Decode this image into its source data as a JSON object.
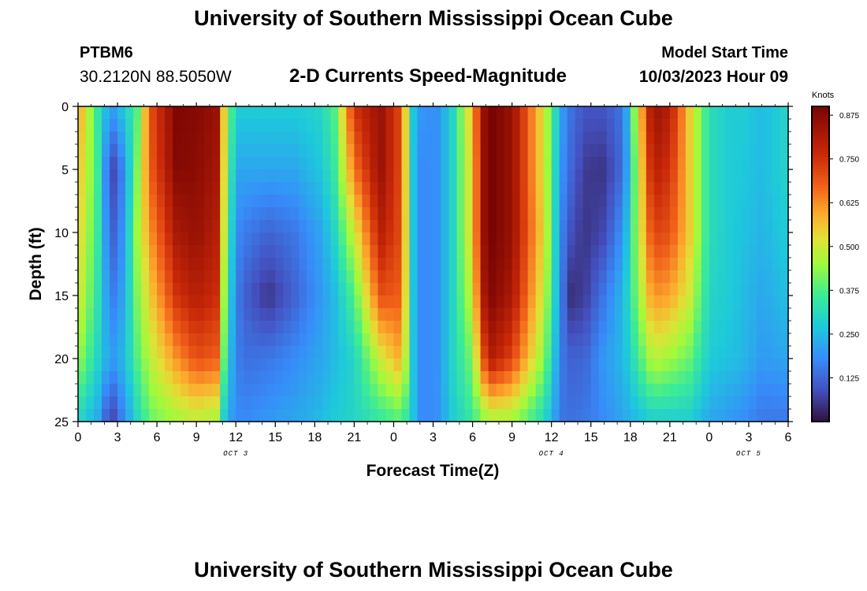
{
  "header": {
    "title": "University of Southern Mississippi Ocean Cube",
    "station_id": "PTBM6",
    "coordinates": "30.2120N  88.5050W",
    "plot_title": "2-D Currents Speed-Magnitude",
    "model_start_label": "Model Start Time",
    "model_start_value": "10/03/2023 Hour 09"
  },
  "footer": {
    "title": "University of Southern Mississippi Ocean Cube"
  },
  "chart_data": {
    "type": "heatmap",
    "title": "2-D Currents Speed-Magnitude",
    "xlabel": "Forecast Time(Z)",
    "ylabel": "Depth (ft)",
    "xlim": [
      0,
      54
    ],
    "ylim": [
      0,
      25
    ],
    "x_ticks": [
      0,
      3,
      6,
      9,
      12,
      15,
      18,
      21,
      24,
      27,
      30,
      33,
      36,
      39,
      42,
      45,
      48,
      51,
      54
    ],
    "x_tick_labels": [
      "0",
      "3",
      "6",
      "9",
      "12",
      "15",
      "18",
      "21",
      "0",
      "3",
      "6",
      "9",
      "12",
      "15",
      "18",
      "21",
      "0",
      "3",
      "6"
    ],
    "y_ticks": [
      0,
      5,
      10,
      15,
      20,
      25
    ],
    "y_tick_labels": [
      "0",
      "5",
      "10",
      "15",
      "20",
      "25"
    ],
    "date_labels": [
      {
        "label": "OCT 3",
        "hours": 12
      },
      {
        "label": "OCT 4",
        "hours": 36
      },
      {
        "label": "OCT 5",
        "hours": 51
      }
    ],
    "colorbar": {
      "label": "Knots",
      "range": [
        0,
        0.9
      ],
      "ticks": [
        0.125,
        0.25,
        0.375,
        0.5,
        0.625,
        0.75,
        0.875
      ],
      "tick_labels": [
        "0.125",
        "0.250",
        "0.375",
        "0.500",
        "0.625",
        "0.750",
        "0.875"
      ]
    },
    "time_columns": [
      0,
      1.5,
      2.5,
      3.5,
      4.5,
      5.5,
      7.5,
      9,
      10.5,
      11.2,
      12,
      13,
      14.5,
      16.5,
      18.5,
      19.5,
      21,
      23,
      24.6,
      25.4,
      26,
      27.2,
      28.5,
      30,
      30.8,
      31.5,
      33,
      35.5,
      36.7,
      37.3,
      38.5,
      40,
      41.5,
      42.5,
      43.7,
      45,
      46.5,
      48,
      49.5,
      50.7,
      52,
      54
    ],
    "depth_rows": [
      0,
      5,
      10,
      15,
      20,
      25
    ],
    "speed_grid_knots": [
      [
        0.62,
        0.34,
        0.2,
        0.28,
        0.38,
        0.7,
        0.89,
        0.88,
        0.85,
        0.5,
        0.28,
        0.28,
        0.28,
        0.28,
        0.3,
        0.38,
        0.75,
        0.85,
        0.7,
        0.28,
        0.2,
        0.18,
        0.3,
        0.58,
        0.85,
        0.9,
        0.85,
        0.5,
        0.22,
        0.15,
        0.1,
        0.1,
        0.15,
        0.5,
        0.85,
        0.8,
        0.55,
        0.32,
        0.28,
        0.28,
        0.25,
        0.3
      ],
      [
        0.58,
        0.36,
        0.06,
        0.18,
        0.42,
        0.68,
        0.88,
        0.87,
        0.83,
        0.48,
        0.22,
        0.22,
        0.22,
        0.22,
        0.27,
        0.35,
        0.65,
        0.85,
        0.7,
        0.28,
        0.18,
        0.18,
        0.3,
        0.55,
        0.85,
        0.9,
        0.85,
        0.5,
        0.2,
        0.14,
        0.06,
        0.05,
        0.14,
        0.45,
        0.8,
        0.75,
        0.55,
        0.32,
        0.28,
        0.27,
        0.25,
        0.3
      ],
      [
        0.55,
        0.35,
        0.1,
        0.2,
        0.45,
        0.62,
        0.82,
        0.85,
        0.8,
        0.45,
        0.18,
        0.15,
        0.12,
        0.15,
        0.22,
        0.3,
        0.5,
        0.8,
        0.7,
        0.28,
        0.18,
        0.18,
        0.3,
        0.55,
        0.85,
        0.9,
        0.85,
        0.52,
        0.18,
        0.1,
        0.05,
        0.08,
        0.2,
        0.45,
        0.72,
        0.7,
        0.55,
        0.32,
        0.28,
        0.26,
        0.24,
        0.28
      ],
      [
        0.52,
        0.33,
        0.15,
        0.22,
        0.42,
        0.55,
        0.75,
        0.8,
        0.76,
        0.4,
        0.16,
        0.1,
        0.05,
        0.12,
        0.2,
        0.25,
        0.38,
        0.7,
        0.68,
        0.28,
        0.18,
        0.18,
        0.3,
        0.5,
        0.82,
        0.88,
        0.82,
        0.48,
        0.18,
        0.04,
        0.06,
        0.15,
        0.25,
        0.42,
        0.62,
        0.6,
        0.5,
        0.3,
        0.28,
        0.25,
        0.22,
        0.26
      ],
      [
        0.45,
        0.3,
        0.2,
        0.25,
        0.38,
        0.48,
        0.62,
        0.7,
        0.68,
        0.35,
        0.16,
        0.14,
        0.15,
        0.18,
        0.22,
        0.25,
        0.3,
        0.5,
        0.6,
        0.28,
        0.18,
        0.18,
        0.3,
        0.42,
        0.7,
        0.8,
        0.72,
        0.42,
        0.16,
        0.12,
        0.12,
        0.2,
        0.25,
        0.35,
        0.48,
        0.45,
        0.4,
        0.28,
        0.26,
        0.24,
        0.2,
        0.22
      ],
      [
        0.3,
        0.22,
        0.05,
        0.18,
        0.3,
        0.4,
        0.45,
        0.48,
        0.45,
        0.25,
        0.18,
        0.18,
        0.2,
        0.22,
        0.25,
        0.28,
        0.3,
        0.34,
        0.38,
        0.28,
        0.18,
        0.18,
        0.28,
        0.35,
        0.42,
        0.45,
        0.45,
        0.3,
        0.15,
        0.14,
        0.15,
        0.18,
        0.22,
        0.25,
        0.28,
        0.28,
        0.28,
        0.22,
        0.2,
        0.18,
        0.15,
        0.15
      ]
    ]
  }
}
